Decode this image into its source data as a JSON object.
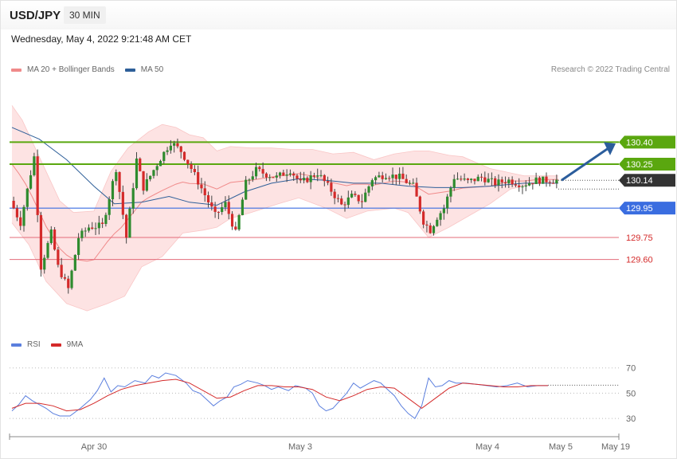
{
  "header": {
    "symbol": "USD/JPY",
    "timeframe": "30 MIN",
    "datetime": "Wednesday, May 4, 2022 9:21:48 AM CET"
  },
  "credit": "Research © 2022 Trading Central",
  "legends": {
    "price": [
      {
        "label": "MA 20 + Bollinger Bands",
        "color": "#f08a8a"
      },
      {
        "label": "MA 50",
        "color": "#2e5f99"
      }
    ],
    "rsi": [
      {
        "label": "RSI",
        "color": "#5b7fde"
      },
      {
        "label": "9MA",
        "color": "#d42a2a"
      }
    ]
  },
  "colors": {
    "resistance": "#5aa70f",
    "support": "#3a6de0",
    "target": "#e36b7a",
    "current": "#333333",
    "candle_up": "#2e8b2e",
    "candle_down": "#d42a2a",
    "band_fill": "#fde3e3",
    "arrow": "#2b5d9c"
  },
  "chart_data": [
    {
      "type": "candlestick",
      "title": "USD/JPY 30 MIN",
      "x_ticks": [
        "Apr 30",
        "May 3",
        "May 4",
        "May 5",
        "May 19"
      ],
      "ylim": [
        129.12,
        130.82
      ],
      "levels": [
        {
          "label": "130.40",
          "value": 130.4,
          "kind": "resistance"
        },
        {
          "label": "130.25",
          "value": 130.25,
          "kind": "resistance"
        },
        {
          "label": "130.14",
          "value": 130.14,
          "kind": "current"
        },
        {
          "label": "129.95",
          "value": 129.95,
          "kind": "support"
        },
        {
          "label": "129.75",
          "value": 129.75,
          "kind": "target"
        },
        {
          "label": "129.60",
          "value": 129.6,
          "kind": "target"
        }
      ],
      "candle_anchors": [
        [
          0,
          130.0
        ],
        [
          3,
          129.85
        ],
        [
          7,
          130.3
        ],
        [
          9,
          129.55
        ],
        [
          12,
          129.78
        ],
        [
          14,
          129.55
        ],
        [
          17,
          129.4
        ],
        [
          20,
          129.75
        ],
        [
          23,
          129.82
        ],
        [
          27,
          129.83
        ],
        [
          31,
          130.22
        ],
        [
          34,
          129.75
        ],
        [
          37,
          130.28
        ],
        [
          39,
          130.09
        ],
        [
          44,
          130.29
        ],
        [
          47,
          130.4
        ],
        [
          50,
          130.34
        ],
        [
          53,
          130.22
        ],
        [
          57,
          130.04
        ],
        [
          60,
          129.9
        ],
        [
          63,
          129.98
        ],
        [
          66,
          129.78
        ],
        [
          69,
          130.12
        ],
        [
          72,
          130.21
        ],
        [
          75,
          130.18
        ],
        [
          78,
          130.16
        ],
        [
          82,
          130.21
        ],
        [
          85,
          130.12
        ],
        [
          90,
          130.19
        ],
        [
          94,
          130.07
        ],
        [
          97,
          129.97
        ],
        [
          100,
          130.03
        ],
        [
          103,
          130.0
        ],
        [
          106,
          130.15
        ],
        [
          110,
          130.18
        ],
        [
          114,
          130.16
        ],
        [
          118,
          130.1
        ],
        [
          121,
          129.86
        ],
        [
          123,
          129.8
        ],
        [
          125,
          129.89
        ],
        [
          127,
          129.95
        ],
        [
          130,
          130.16
        ],
        [
          134,
          130.13
        ],
        [
          138,
          130.16
        ],
        [
          142,
          130.12
        ],
        [
          146,
          130.14
        ],
        [
          150,
          130.11
        ],
        [
          154,
          130.14
        ],
        [
          160,
          130.14
        ]
      ],
      "ma50_path": [
        [
          0,
          130.5
        ],
        [
          8,
          130.42
        ],
        [
          16,
          130.28
        ],
        [
          24,
          130.1
        ],
        [
          30,
          129.98
        ],
        [
          38,
          129.99
        ],
        [
          46,
          130.03
        ],
        [
          52,
          129.99
        ],
        [
          60,
          129.97
        ],
        [
          68,
          130.06
        ],
        [
          76,
          130.12
        ],
        [
          84,
          130.15
        ],
        [
          92,
          130.14
        ],
        [
          100,
          130.12
        ],
        [
          108,
          130.12
        ],
        [
          116,
          130.1
        ],
        [
          124,
          130.09
        ],
        [
          132,
          130.09
        ],
        [
          140,
          130.1
        ],
        [
          150,
          130.12
        ],
        [
          160,
          130.12
        ]
      ],
      "band_upper": [
        [
          0,
          130.65
        ],
        [
          3,
          130.55
        ],
        [
          8,
          130.3
        ],
        [
          14,
          130.0
        ],
        [
          18,
          129.92
        ],
        [
          24,
          129.93
        ],
        [
          29,
          130.2
        ],
        [
          34,
          130.36
        ],
        [
          40,
          130.47
        ],
        [
          44,
          130.52
        ],
        [
          48,
          130.5
        ],
        [
          52,
          130.45
        ],
        [
          56,
          130.43
        ],
        [
          60,
          130.34
        ],
        [
          64,
          130.37
        ],
        [
          70,
          130.36
        ],
        [
          76,
          130.36
        ],
        [
          82,
          130.35
        ],
        [
          88,
          130.35
        ],
        [
          94,
          130.32
        ],
        [
          100,
          130.33
        ],
        [
          106,
          130.28
        ],
        [
          112,
          130.32
        ],
        [
          118,
          130.34
        ],
        [
          122,
          130.34
        ],
        [
          128,
          130.31
        ],
        [
          132,
          130.3
        ],
        [
          140,
          130.22
        ],
        [
          150,
          130.17
        ],
        [
          160,
          130.17
        ]
      ],
      "band_lower": [
        [
          0,
          129.85
        ],
        [
          5,
          129.7
        ],
        [
          10,
          129.45
        ],
        [
          16,
          129.3
        ],
        [
          22,
          129.25
        ],
        [
          28,
          129.3
        ],
        [
          33,
          129.35
        ],
        [
          38,
          129.55
        ],
        [
          44,
          129.62
        ],
        [
          50,
          129.78
        ],
        [
          56,
          129.8
        ],
        [
          60,
          129.82
        ],
        [
          64,
          129.88
        ],
        [
          70,
          129.92
        ],
        [
          78,
          129.98
        ],
        [
          84,
          130.02
        ],
        [
          92,
          129.95
        ],
        [
          98,
          129.88
        ],
        [
          104,
          129.93
        ],
        [
          112,
          129.95
        ],
        [
          116,
          129.92
        ],
        [
          122,
          129.75
        ],
        [
          128,
          129.82
        ],
        [
          134,
          129.9
        ],
        [
          140,
          129.98
        ],
        [
          146,
          130.08
        ],
        [
          154,
          130.12
        ],
        [
          160,
          130.12
        ]
      ]
    },
    {
      "type": "line",
      "y_ticks": [
        70,
        50,
        30
      ],
      "ylim": [
        20,
        78
      ],
      "series": [
        {
          "name": "RSI",
          "values": [
            [
              0,
              36
            ],
            [
              2,
              41
            ],
            [
              4,
              48
            ],
            [
              6,
              44
            ],
            [
              8,
              41
            ],
            [
              10,
              38
            ],
            [
              12,
              34
            ],
            [
              14,
              32
            ],
            [
              17,
              32
            ],
            [
              20,
              38
            ],
            [
              23,
              45
            ],
            [
              25,
              52
            ],
            [
              27,
              62
            ],
            [
              29,
              51
            ],
            [
              31,
              56
            ],
            [
              33,
              55
            ],
            [
              36,
              60
            ],
            [
              39,
              58
            ],
            [
              41,
              64
            ],
            [
              43,
              62
            ],
            [
              45,
              66
            ],
            [
              48,
              64
            ],
            [
              51,
              58
            ],
            [
              53,
              52
            ],
            [
              55,
              50
            ],
            [
              57,
              45
            ],
            [
              59,
              40
            ],
            [
              61,
              44
            ],
            [
              63,
              47
            ],
            [
              65,
              55
            ],
            [
              67,
              57
            ],
            [
              69,
              60
            ],
            [
              72,
              58
            ],
            [
              74,
              56
            ],
            [
              76,
              53
            ],
            [
              78,
              55
            ],
            [
              81,
              52
            ],
            [
              83,
              56
            ],
            [
              86,
              54
            ],
            [
              88,
              50
            ],
            [
              90,
              40
            ],
            [
              92,
              36
            ],
            [
              94,
              38
            ],
            [
              96,
              44
            ],
            [
              98,
              50
            ],
            [
              100,
              58
            ],
            [
              102,
              54
            ],
            [
              104,
              57
            ],
            [
              106,
              60
            ],
            [
              108,
              58
            ],
            [
              110,
              53
            ],
            [
              112,
              48
            ],
            [
              114,
              40
            ],
            [
              116,
              34
            ],
            [
              118,
              30
            ],
            [
              120,
              40
            ],
            [
              122,
              62
            ],
            [
              124,
              55
            ],
            [
              126,
              56
            ],
            [
              128,
              60
            ],
            [
              130,
              58
            ],
            [
              133,
              58
            ],
            [
              136,
              57
            ],
            [
              139,
              56
            ],
            [
              142,
              55
            ],
            [
              145,
              56
            ],
            [
              148,
              58
            ],
            [
              151,
              55
            ],
            [
              154,
              56
            ],
            [
              157,
              56
            ]
          ]
        },
        {
          "name": "9MA",
          "values": [
            [
              0,
              38
            ],
            [
              4,
              42
            ],
            [
              8,
              42
            ],
            [
              12,
              40
            ],
            [
              16,
              36
            ],
            [
              20,
              37
            ],
            [
              24,
              42
            ],
            [
              28,
              48
            ],
            [
              32,
              53
            ],
            [
              36,
              56
            ],
            [
              40,
              58
            ],
            [
              44,
              60
            ],
            [
              48,
              61
            ],
            [
              52,
              58
            ],
            [
              56,
              52
            ],
            [
              60,
              46
            ],
            [
              64,
              47
            ],
            [
              68,
              52
            ],
            [
              72,
              56
            ],
            [
              76,
              56
            ],
            [
              80,
              55
            ],
            [
              84,
              55
            ],
            [
              88,
              53
            ],
            [
              92,
              47
            ],
            [
              96,
              44
            ],
            [
              100,
              48
            ],
            [
              104,
              53
            ],
            [
              108,
              55
            ],
            [
              112,
              54
            ],
            [
              116,
              46
            ],
            [
              120,
              38
            ],
            [
              124,
              46
            ],
            [
              128,
              54
            ],
            [
              132,
              58
            ],
            [
              136,
              57
            ],
            [
              140,
              56
            ],
            [
              144,
              55
            ],
            [
              148,
              55
            ],
            [
              152,
              56
            ],
            [
              157,
              56
            ]
          ]
        }
      ]
    }
  ]
}
